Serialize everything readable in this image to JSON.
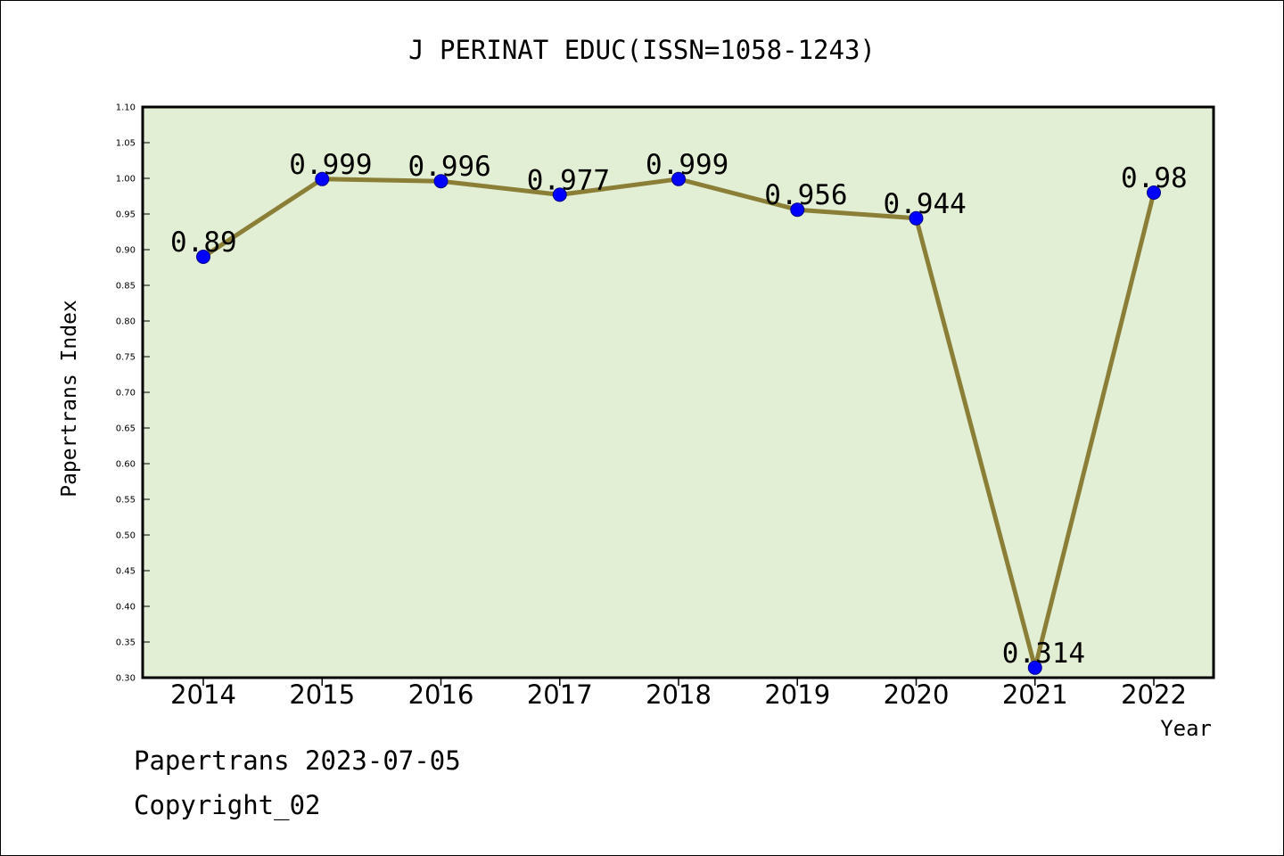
{
  "chart_data": {
    "type": "line",
    "title": "J PERINAT EDUC(ISSN=1058-1243)",
    "xlabel": "Year",
    "ylabel": "Papertrans Index",
    "categories": [
      "2014",
      "2015",
      "2016",
      "2017",
      "2018",
      "2019",
      "2020",
      "2021",
      "2022"
    ],
    "values": [
      0.89,
      0.999,
      0.996,
      0.977,
      0.999,
      0.956,
      0.944,
      0.314,
      0.98
    ],
    "data_labels": [
      "0.89",
      "0.999",
      "0.996",
      "0.977",
      "0.999",
      "0.956",
      "0.944",
      "0.314",
      "0.98"
    ],
    "ylim": [
      0.3,
      1.1
    ],
    "yticks": [
      "0.30",
      "0.35",
      "0.40",
      "0.45",
      "0.50",
      "0.55",
      "0.60",
      "0.65",
      "0.70",
      "0.75",
      "0.80",
      "0.85",
      "0.90",
      "0.95",
      "1.00",
      "1.05",
      "1.10"
    ],
    "grid": false,
    "legend": "none",
    "colors": {
      "plot_background": "#e2efd4",
      "line": "#8b7f37",
      "marker": "#0000ff",
      "marker_edge": "#00008b"
    }
  },
  "footer": {
    "line1": "Papertrans 2023-07-05",
    "line2": "Copyright_02"
  }
}
